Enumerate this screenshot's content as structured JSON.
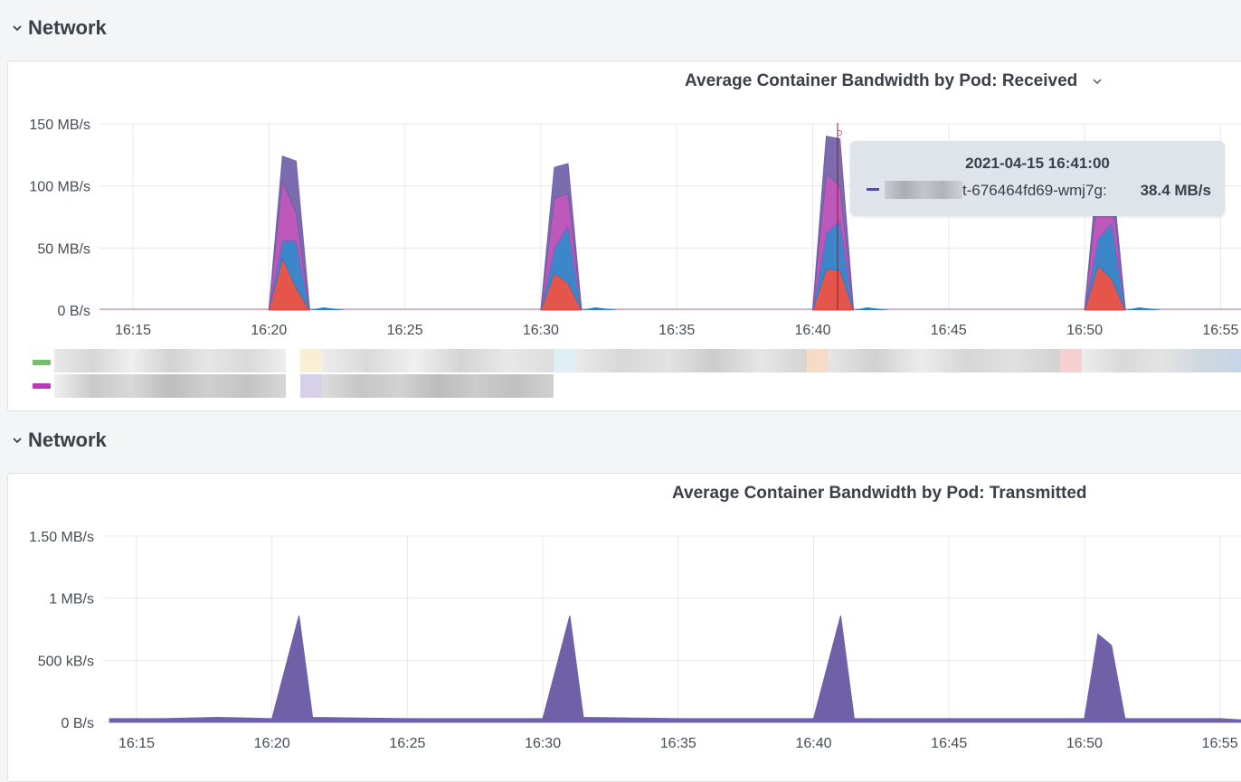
{
  "rows": [
    {
      "title": "Network"
    },
    {
      "title": "Network"
    }
  ],
  "panels": [
    {
      "title": "Average Container Bandwidth by Pod: Received",
      "has_menu": true,
      "y_ticks": [
        "150 MB/s",
        "100 MB/s",
        "50 MB/s",
        "0 B/s"
      ],
      "x_ticks": [
        "16:15",
        "16:20",
        "16:25",
        "16:30",
        "16:35",
        "16:40",
        "16:45",
        "16:50",
        "16:55"
      ],
      "hover_time": "16:41"
    },
    {
      "title": "Average Container Bandwidth by Pod: Transmitted",
      "has_menu": false,
      "y_ticks": [
        "1.50 MB/s",
        "1 MB/s",
        "500 kB/s",
        "0 B/s"
      ],
      "x_ticks": [
        "16:15",
        "16:20",
        "16:25",
        "16:30",
        "16:35",
        "16:40",
        "16:45",
        "16:50",
        "16:55"
      ]
    }
  ],
  "tooltip": {
    "time": "2021-04-15 16:41:00",
    "series_name": "t-676464fd69-wmj7g:",
    "value": "38.4 MB/s",
    "color": "#5a4a9e"
  },
  "legend": {
    "swatch_colors": [
      "#73bf69",
      "#b83ab4"
    ]
  },
  "chart_data": [
    {
      "type": "area",
      "title": "Average Container Bandwidth by Pod: Received",
      "x_unit": "time (HH:MM, 2021-04-15)",
      "ylim": [
        0,
        150
      ],
      "y_unit": "MB/s",
      "stacked": true,
      "spikes": [
        {
          "x": [
            "16:20:00",
            "16:20:30",
            "16:21:00",
            "16:21:30"
          ],
          "layers": {
            "red": [
              0,
              42,
              18,
              0
            ],
            "blue": [
              0,
              14,
              38,
              0
            ],
            "magenta": [
              0,
              48,
              22,
              0
            ],
            "purple": [
              0,
              20,
              42,
              0
            ]
          }
        },
        {
          "x": [
            "16:30:00",
            "16:30:30",
            "16:31:00",
            "16:31:30"
          ],
          "layers": {
            "red": [
              0,
              30,
              22,
              0
            ],
            "blue": [
              0,
              20,
              46,
              0
            ],
            "magenta": [
              0,
              40,
              26,
              0
            ],
            "purple": [
              0,
              25,
              24,
              0
            ]
          }
        },
        {
          "x": [
            "16:40:00",
            "16:40:30",
            "16:41:00",
            "16:41:30"
          ],
          "layers": {
            "red": [
              0,
              33,
              32,
              0
            ],
            "blue": [
              0,
              29,
              40,
              0
            ],
            "magenta": [
              0,
              48,
              28,
              0
            ],
            "purple": [
              0,
              30,
              38,
              0
            ]
          }
        },
        {
          "x": [
            "16:50:00",
            "16:50:30",
            "16:51:00",
            "16:51:30"
          ],
          "layers": {
            "red": [
              0,
              36,
              25,
              0
            ],
            "blue": [
              0,
              22,
              45,
              0
            ],
            "magenta": [
              0,
              40,
              26,
              0
            ],
            "purple": [
              0,
              20,
              16,
              0
            ]
          }
        }
      ]
    },
    {
      "type": "area",
      "title": "Average Container Bandwidth by Pod: Transmitted",
      "x_unit": "time (HH:MM, 2021-04-15)",
      "ylim": [
        0,
        1.5
      ],
      "y_unit": "MB/s",
      "series": [
        {
          "color": "#7060a8",
          "x": [
            "16:14",
            "16:16",
            "16:18",
            "16:20",
            "16:21",
            "16:21.5",
            "16:25",
            "16:30",
            "16:31",
            "16:31.5",
            "16:35",
            "16:40",
            "16:41",
            "16:41.5",
            "16:45",
            "16:50",
            "16:50.5",
            "16:51",
            "16:51.5",
            "16:55",
            "16:56"
          ],
          "y": [
            0.03,
            0.03,
            0.04,
            0.03,
            0.86,
            0.04,
            0.03,
            0.03,
            0.86,
            0.04,
            0.03,
            0.03,
            0.86,
            0.03,
            0.03,
            0.03,
            0.71,
            0.62,
            0.03,
            0.03,
            0.02
          ]
        }
      ]
    }
  ]
}
